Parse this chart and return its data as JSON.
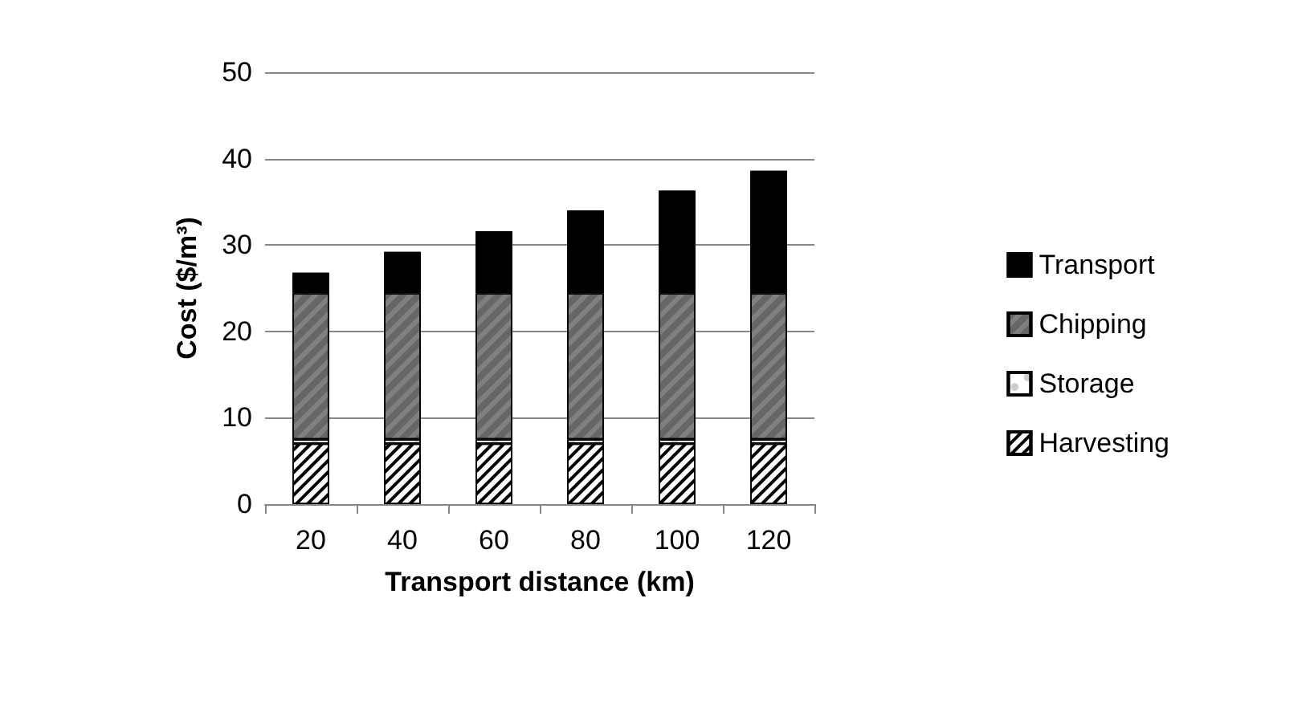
{
  "chart_data": {
    "type": "bar",
    "stacked": true,
    "xlabel": "Transport distance (km)",
    "ylabel": "Cost ($/m³)",
    "categories": [
      "20",
      "40",
      "60",
      "80",
      "100",
      "120"
    ],
    "series": [
      {
        "name": "Harvesting",
        "color": "#ffffff",
        "values": [
          7.0,
          7.0,
          7.0,
          7.0,
          7.0,
          7.0
        ]
      },
      {
        "name": "Storage",
        "color": "#ffffff",
        "values": [
          0.5,
          0.5,
          0.5,
          0.5,
          0.5,
          0.5
        ]
      },
      {
        "name": "Chipping",
        "color": "#808080",
        "values": [
          16.9,
          16.9,
          16.9,
          16.9,
          16.9,
          16.9
        ]
      },
      {
        "name": "Transport",
        "color": "#000000",
        "values": [
          2.4,
          4.8,
          7.2,
          9.6,
          11.9,
          14.2
        ]
      }
    ],
    "ylim": [
      0,
      50
    ],
    "yticks": [
      0,
      10,
      20,
      30,
      40,
      50
    ],
    "grid": "y",
    "legend": "right"
  }
}
